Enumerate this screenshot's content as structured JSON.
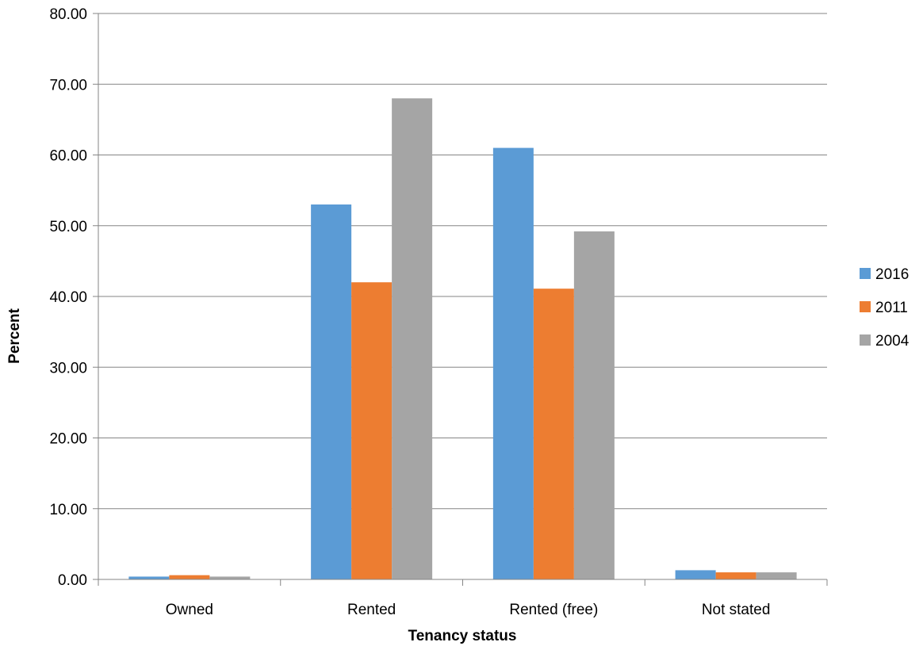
{
  "chart_data": {
    "type": "bar",
    "title": "",
    "xlabel": "Tenancy status",
    "ylabel": "Percent",
    "ylim": [
      0,
      80
    ],
    "ytick_step": 10,
    "ytick_labels": [
      "0.00",
      "10.00",
      "20.00",
      "30.00",
      "40.00",
      "50.00",
      "60.00",
      "70.00",
      "80.00"
    ],
    "grid": true,
    "legend_position": "right",
    "categories": [
      "Owned",
      "Rented",
      "Rented (free)",
      "Not stated"
    ],
    "series": [
      {
        "name": "2016",
        "color": "#5B9BD5",
        "values": [
          0.4,
          53.0,
          61.0,
          1.3
        ]
      },
      {
        "name": "2011",
        "color": "#ED7D31",
        "values": [
          0.6,
          42.0,
          41.1,
          1.0
        ]
      },
      {
        "name": "2004",
        "color": "#A5A5A5",
        "values": [
          0.4,
          68.0,
          49.2,
          1.0
        ]
      }
    ]
  }
}
